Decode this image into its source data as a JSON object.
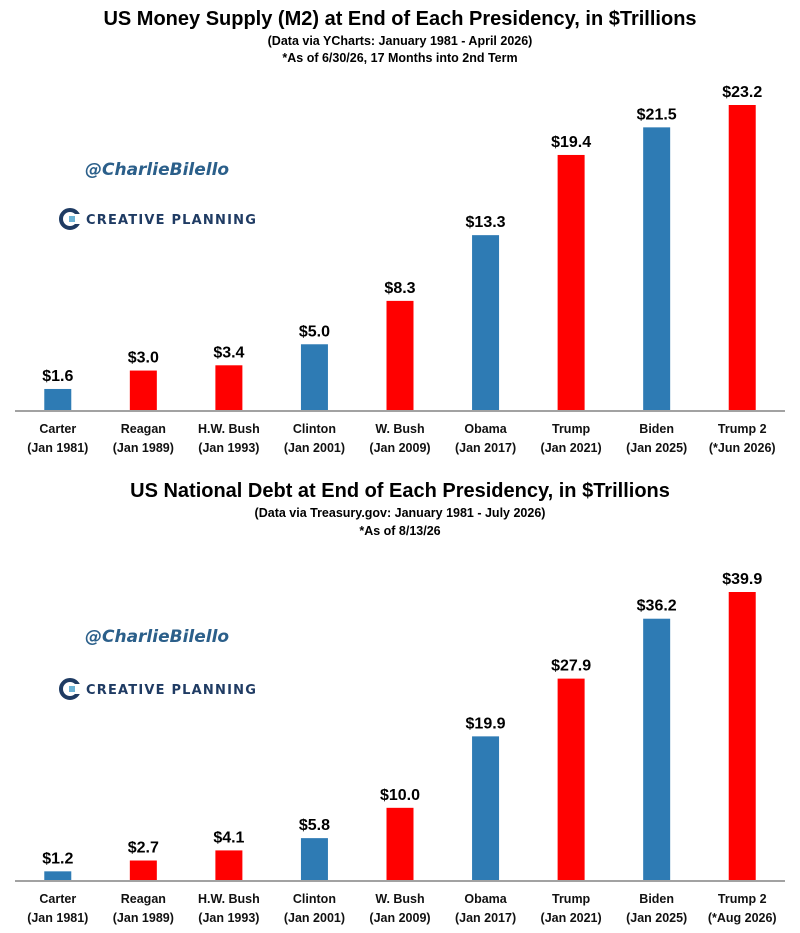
{
  "colors": {
    "blue": "#2e7bb4",
    "red": "#ff0000",
    "axis": "#444444",
    "brand": "#1f3b63",
    "handle": "#2b5f8a"
  },
  "watermark": {
    "handle": "@CharlieBilello",
    "brand": "CREATIVE PLANNING",
    "logo_icon": "creative-planning-logo-icon"
  },
  "chart_data": [
    {
      "type": "bar",
      "title": "US Money Supply (M2) at End of Each Presidency, in $Trillions",
      "subtitle1": "(Data via YCharts: January 1981 - April 2026)",
      "subtitle2": "*As of 6/30/26, 17 Months into 2nd Term",
      "categories": [
        "Carter",
        "Reagan",
        "H.W. Bush",
        "Clinton",
        "W. Bush",
        "Obama",
        "Trump",
        "Biden",
        "Trump 2"
      ],
      "category_dates": [
        "(Jan 1981)",
        "(Jan 1989)",
        "(Jan 1993)",
        "(Jan 2001)",
        "(Jan 2009)",
        "(Jan 2017)",
        "(Jan 2021)",
        "(Jan 2025)",
        "(*Jun 2026)"
      ],
      "values": [
        1.6,
        3.0,
        3.4,
        5.0,
        8.3,
        13.3,
        19.4,
        21.5,
        23.2
      ],
      "value_labels": [
        "$1.6",
        "$3.0",
        "$3.4",
        "$5.0",
        "$8.3",
        "$13.3",
        "$19.4",
        "$21.5",
        "$23.2"
      ],
      "bar_colors": [
        "blue",
        "red",
        "red",
        "blue",
        "red",
        "blue",
        "red",
        "blue",
        "red"
      ],
      "ylim": [
        0,
        23.2
      ],
      "grid": false,
      "legend": "none"
    },
    {
      "type": "bar",
      "title": "US National Debt at End of Each Presidency, in $Trillions",
      "subtitle1": "(Data via Treasury.gov: January 1981 - July 2026)",
      "subtitle2": "*As of 8/13/26",
      "categories": [
        "Carter",
        "Reagan",
        "H.W. Bush",
        "Clinton",
        "W. Bush",
        "Obama",
        "Trump",
        "Biden",
        "Trump 2"
      ],
      "category_dates": [
        "(Jan 1981)",
        "(Jan 1989)",
        "(Jan 1993)",
        "(Jan 2001)",
        "(Jan 2009)",
        "(Jan 2017)",
        "(Jan 2021)",
        "(Jan 2025)",
        "(*Aug 2026)"
      ],
      "values": [
        1.2,
        2.7,
        4.1,
        5.8,
        10.0,
        19.9,
        27.9,
        36.2,
        39.9
      ],
      "value_labels": [
        "$1.2",
        "$2.7",
        "$4.1",
        "$5.8",
        "$10.0",
        "$19.9",
        "$27.9",
        "$36.2",
        "$39.9"
      ],
      "bar_colors": [
        "blue",
        "red",
        "red",
        "blue",
        "red",
        "blue",
        "red",
        "blue",
        "red"
      ],
      "ylim": [
        0,
        39.9
      ],
      "grid": false,
      "legend": "none"
    }
  ]
}
